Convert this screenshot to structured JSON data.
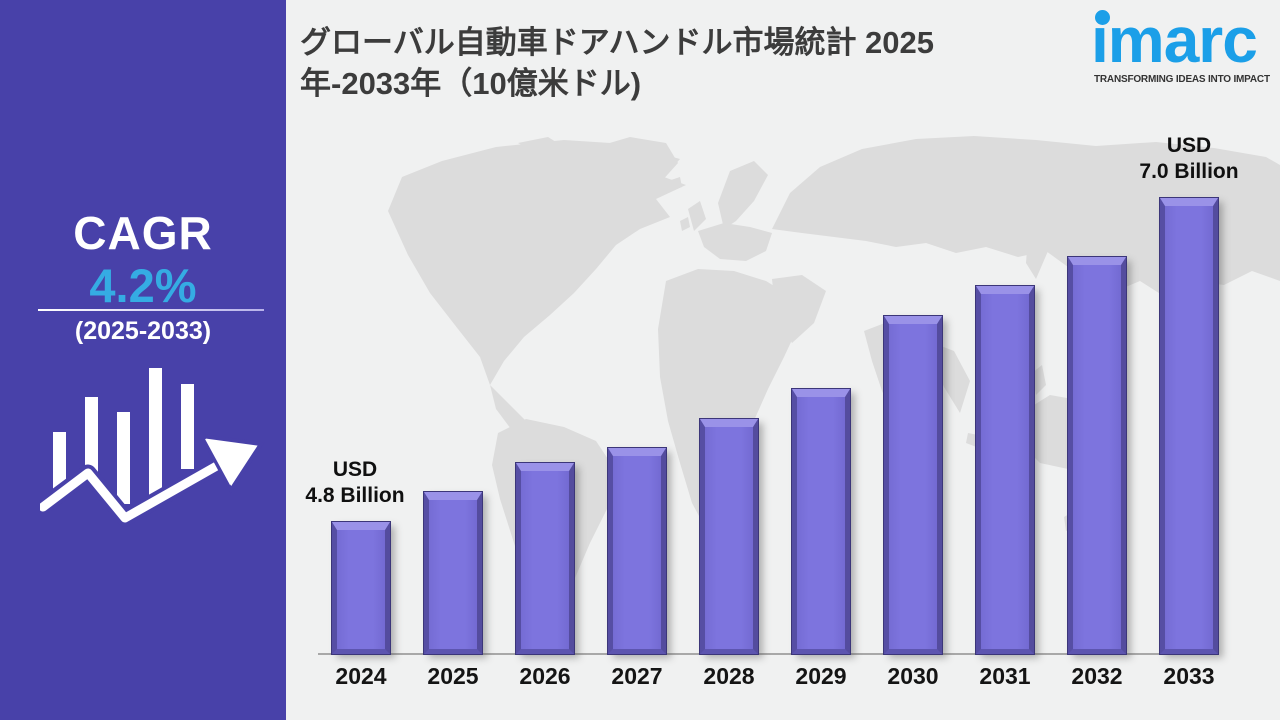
{
  "sidebar": {
    "bg_color": "#4841A9",
    "cagr_label": "CAGR",
    "cagr_value": "4.2%",
    "cagr_value_color": "#35ACE3",
    "cagr_period": "(2025-2033)"
  },
  "header": {
    "title": "グローバル自動車ドアハンドル市場統計 2025\n年-2033年（10億米ドル)",
    "logo": {
      "text": "imarc",
      "tagline": "TRANSFORMING IDEAS INTO IMPACT",
      "brand_color": "#1B9FE8"
    }
  },
  "chart_data": {
    "type": "bar",
    "title": "グローバル自動車ドアハンドル市場統計 2025年-2033年（10億米ドル)",
    "categories": [
      "2024",
      "2025",
      "2026",
      "2027",
      "2028",
      "2029",
      "2030",
      "2031",
      "2032",
      "2033"
    ],
    "values": [
      4.8,
      5.0,
      5.2,
      5.3,
      5.5,
      5.7,
      6.2,
      6.4,
      6.6,
      7.0
    ],
    "unit": "USD Billion",
    "annotations": [
      {
        "category": "2024",
        "text": "USD\n4.8 Billion"
      },
      {
        "category": "2033",
        "text": "USD\n7.0 Billion"
      }
    ],
    "ylim": [
      3.9,
      7.0
    ],
    "bar_color": "#7B72DA",
    "bar_highlight_color": "#9A92E8",
    "bar_edge_color": "#564EA4",
    "axis_color": "#A8A8A8",
    "grid": false,
    "legend": false,
    "background_map": "world-map"
  }
}
